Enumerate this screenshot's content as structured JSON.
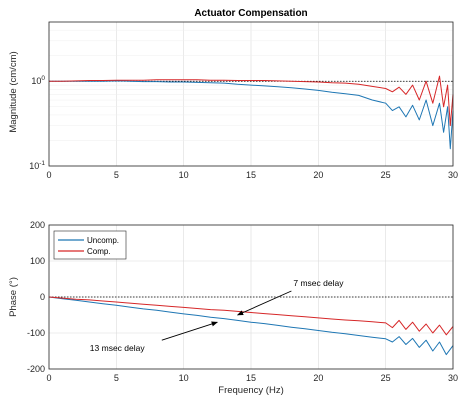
{
  "chart_data": [
    {
      "type": "line",
      "title": "Actuator Compensation",
      "xlabel": "",
      "ylabel": "Magnitude (cm/cm)",
      "yscale": "log",
      "xlim": [
        0,
        30
      ],
      "ylim": [
        0.1,
        5
      ],
      "xticks": [
        "0",
        "5",
        "10",
        "15",
        "20",
        "25",
        "30"
      ],
      "yticks": [
        {
          "value": 0.1,
          "base": "10",
          "exp": "-1"
        },
        {
          "value": 1,
          "base": "10",
          "exp": "0"
        }
      ],
      "grid": true,
      "reference_line": {
        "y": 1,
        "style": "dotted",
        "color": "#000000"
      },
      "series": [
        {
          "name": "Uncomp.",
          "color": "#1f77b4",
          "x": [
            0,
            1,
            2,
            3,
            4,
            5,
            6,
            7,
            8,
            9,
            10,
            11,
            12,
            13,
            14,
            15,
            16,
            17,
            18,
            19,
            20,
            21,
            22,
            23,
            24,
            25,
            25.5,
            26,
            26.5,
            27,
            27.5,
            28,
            28.5,
            29,
            29.3,
            29.6,
            29.8,
            30
          ],
          "values": [
            1.0,
            1.0,
            1.0,
            1.0,
            1.0,
            1.01,
            1.0,
            0.99,
            0.99,
            0.98,
            0.98,
            0.97,
            0.96,
            0.95,
            0.92,
            0.9,
            0.88,
            0.86,
            0.84,
            0.81,
            0.78,
            0.74,
            0.71,
            0.68,
            0.6,
            0.55,
            0.45,
            0.5,
            0.38,
            0.52,
            0.35,
            0.6,
            0.3,
            0.55,
            0.25,
            0.5,
            0.16,
            0.45
          ]
        },
        {
          "name": "Comp.",
          "color": "#d62728",
          "x": [
            0,
            1,
            2,
            3,
            4,
            5,
            6,
            7,
            8,
            9,
            10,
            11,
            12,
            13,
            14,
            15,
            16,
            17,
            18,
            19,
            20,
            21,
            22,
            23,
            24,
            25,
            25.5,
            26,
            26.5,
            27,
            27.5,
            28,
            28.5,
            29,
            29.3,
            29.6,
            29.8,
            30
          ],
          "values": [
            1.0,
            1.0,
            1.01,
            1.02,
            1.02,
            1.03,
            1.03,
            1.03,
            1.04,
            1.04,
            1.04,
            1.04,
            1.03,
            1.03,
            1.02,
            1.02,
            1.02,
            1.01,
            1.0,
            0.99,
            0.98,
            0.96,
            0.95,
            0.92,
            0.87,
            0.82,
            0.75,
            0.85,
            0.7,
            0.9,
            0.6,
            1.0,
            0.55,
            1.15,
            0.5,
            0.9,
            0.3,
            0.7
          ]
        }
      ]
    },
    {
      "type": "line",
      "title": "",
      "xlabel": "Frequency (Hz)",
      "ylabel": "Phase (°)",
      "xlim": [
        0,
        30
      ],
      "ylim": [
        -200,
        200
      ],
      "xticks": [
        "0",
        "5",
        "10",
        "15",
        "20",
        "25",
        "30"
      ],
      "yticks": [
        "-200",
        "-100",
        "0",
        "100",
        "200"
      ],
      "grid": true,
      "legend": "top-left",
      "reference_line": {
        "y": 0,
        "style": "dotted",
        "color": "#000000"
      },
      "series": [
        {
          "name": "Uncomp.",
          "color": "#1f77b4",
          "x": [
            0,
            1,
            2,
            3,
            4,
            5,
            6,
            7,
            8,
            9,
            10,
            11,
            12,
            13,
            14,
            15,
            16,
            17,
            18,
            19,
            20,
            21,
            22,
            23,
            24,
            25,
            25.5,
            26,
            26.5,
            27,
            27.5,
            28,
            28.5,
            29,
            29.5,
            30
          ],
          "values": [
            0,
            -5,
            -9,
            -14,
            -19,
            -23,
            -28,
            -33,
            -37,
            -42,
            -47,
            -51,
            -56,
            -60,
            -65,
            -70,
            -74,
            -79,
            -84,
            -88,
            -93,
            -98,
            -102,
            -107,
            -112,
            -116,
            -125,
            -110,
            -132,
            -115,
            -140,
            -120,
            -150,
            -125,
            -160,
            -135
          ]
        },
        {
          "name": "Comp.",
          "color": "#d62728",
          "x": [
            0,
            1,
            2,
            3,
            4,
            5,
            6,
            7,
            8,
            9,
            10,
            11,
            12,
            13,
            14,
            15,
            16,
            17,
            18,
            19,
            20,
            21,
            22,
            23,
            24,
            25,
            25.5,
            26,
            26.5,
            27,
            27.5,
            28,
            28.5,
            29,
            29.5,
            30
          ],
          "values": [
            0,
            -3,
            -6,
            -8,
            -11,
            -14,
            -17,
            -20,
            -23,
            -26,
            -29,
            -32,
            -35,
            -37,
            -40,
            -43,
            -46,
            -49,
            -52,
            -55,
            -58,
            -61,
            -64,
            -66,
            -69,
            -72,
            -85,
            -65,
            -90,
            -70,
            -95,
            -75,
            -100,
            -78,
            -105,
            -82
          ]
        }
      ],
      "annotations": [
        {
          "text": "7 msec delay",
          "x": 14,
          "y": -50,
          "label_x": 18,
          "label_y": 25
        },
        {
          "text": "13 msec delay",
          "x": 12.5,
          "y": -70,
          "label_x": 6,
          "label_y": -145
        }
      ]
    }
  ]
}
